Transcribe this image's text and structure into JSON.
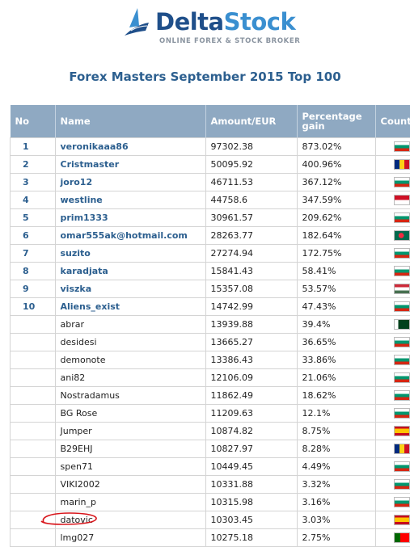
{
  "logo": {
    "name_part1": "Delta",
    "name_part2": "Stock",
    "tagline": "ONLINE FOREX & STOCK BROKER"
  },
  "title": "Forex Masters September 2015 Top 100",
  "table": {
    "headers": [
      "No",
      "Name",
      "Amount/EUR",
      "Percentage gain",
      "Country"
    ],
    "rows": [
      {
        "no": "1",
        "name": "veronikaaa86",
        "amount": "97302.38",
        "gain": "873.02%",
        "flag": "bg"
      },
      {
        "no": "2",
        "name": "Cristmaster",
        "amount": "50095.92",
        "gain": "400.96%",
        "flag": "ro"
      },
      {
        "no": "3",
        "name": "joro12",
        "amount": "46711.53",
        "gain": "367.12%",
        "flag": "bg"
      },
      {
        "no": "4",
        "name": "westline",
        "amount": "44758.6",
        "gain": "347.59%",
        "flag": "id"
      },
      {
        "no": "5",
        "name": "prim1333",
        "amount": "30961.57",
        "gain": "209.62%",
        "flag": "bg"
      },
      {
        "no": "6",
        "name": "omar555ak@hotmail.com",
        "amount": "28263.77",
        "gain": "182.64%",
        "flag": "bd"
      },
      {
        "no": "7",
        "name": "suzito",
        "amount": "27274.94",
        "gain": "172.75%",
        "flag": "bg"
      },
      {
        "no": "8",
        "name": "karadjata",
        "amount": "15841.43",
        "gain": "58.41%",
        "flag": "bg"
      },
      {
        "no": "9",
        "name": "viszka",
        "amount": "15357.08",
        "gain": "53.57%",
        "flag": "hu"
      },
      {
        "no": "10",
        "name": "Aliens_exist",
        "amount": "14742.99",
        "gain": "47.43%",
        "flag": "bg"
      },
      {
        "no": "",
        "name": "abrar",
        "amount": "13939.88",
        "gain": "39.4%",
        "flag": "pk"
      },
      {
        "no": "",
        "name": "desidesi",
        "amount": "13665.27",
        "gain": "36.65%",
        "flag": "bg"
      },
      {
        "no": "",
        "name": "demonote",
        "amount": "13386.43",
        "gain": "33.86%",
        "flag": "bg"
      },
      {
        "no": "",
        "name": "ani82",
        "amount": "12106.09",
        "gain": "21.06%",
        "flag": "bg"
      },
      {
        "no": "",
        "name": "Nostradamus",
        "amount": "11862.49",
        "gain": "18.62%",
        "flag": "bg"
      },
      {
        "no": "",
        "name": "BG Rose",
        "amount": "11209.63",
        "gain": "12.1%",
        "flag": "bg"
      },
      {
        "no": "",
        "name": "Jumper",
        "amount": "10874.82",
        "gain": "8.75%",
        "flag": "es"
      },
      {
        "no": "",
        "name": "B29EHJ",
        "amount": "10827.97",
        "gain": "8.28%",
        "flag": "ro"
      },
      {
        "no": "",
        "name": "spen71",
        "amount": "10449.45",
        "gain": "4.49%",
        "flag": "bg"
      },
      {
        "no": "",
        "name": "VIKI2002",
        "amount": "10331.88",
        "gain": "3.32%",
        "flag": "bg"
      },
      {
        "no": "",
        "name": "marin_p",
        "amount": "10315.98",
        "gain": "3.16%",
        "flag": "bg"
      },
      {
        "no": "",
        "name": "datovic",
        "amount": "10303.45",
        "gain": "3.03%",
        "flag": "es"
      },
      {
        "no": "",
        "name": "lmg027",
        "amount": "10275.18",
        "gain": "2.75%",
        "flag": "pt"
      }
    ]
  },
  "flag_colors": {
    "bg": [
      "#ffffff",
      "#00966e",
      "#d62612"
    ],
    "ro": [
      "#002b7f",
      "#fcd116",
      "#ce1126"
    ],
    "id": [
      "#ce1126",
      "#ffffff"
    ],
    "bd": [
      "#006a4e",
      "#f42a41"
    ],
    "hu": [
      "#ce2939",
      "#ffffff",
      "#477050"
    ],
    "pk": [
      "#ffffff",
      "#01411c"
    ],
    "es": [
      "#c60b1e",
      "#ffc400",
      "#c60b1e"
    ],
    "pt": [
      "#006600",
      "#ff0000"
    ]
  },
  "highlight_color": "#d8141a"
}
